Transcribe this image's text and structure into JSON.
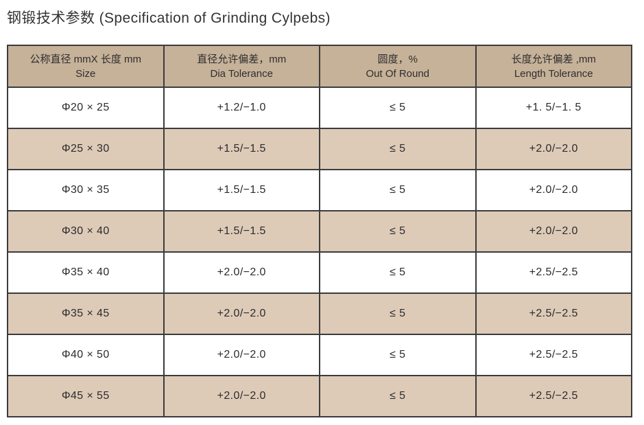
{
  "page": {
    "title": "钢锻技术参数 (Specification of Grinding Cylpebs)"
  },
  "table": {
    "columns": [
      {
        "zh": "公称直径 mmX 长度 mm",
        "en": "Size"
      },
      {
        "zh": "直径允许偏差，mm",
        "en": "Dia Tolerance"
      },
      {
        "zh": "圆度，%",
        "en": "Out Of Round"
      },
      {
        "zh": "长度允许偏差 ,mm",
        "en": "Length Tolerance"
      }
    ],
    "rows": [
      [
        "Φ20 × 25",
        "+1.2/−1.0",
        "≤ 5",
        "+1. 5/−1. 5"
      ],
      [
        "Φ25 × 30",
        "+1.5/−1.5",
        "≤ 5",
        "+2.0/−2.0"
      ],
      [
        "Φ30 × 35",
        "+1.5/−1.5",
        "≤ 5",
        "+2.0/−2.0"
      ],
      [
        "Φ30 × 40",
        "+1.5/−1.5",
        "≤ 5",
        "+2.0/−2.0"
      ],
      [
        "Φ35 × 40",
        "+2.0/−2.0",
        "≤ 5",
        "+2.5/−2.5"
      ],
      [
        "Φ35 × 45",
        "+2.0/−2.0",
        "≤ 5",
        "+2.5/−2.5"
      ],
      [
        "Φ40 × 50",
        "+2.0/−2.0",
        "≤ 5",
        "+2.5/−2.5"
      ],
      [
        "Φ45 × 55",
        "+2.0/−2.0",
        "≤ 5",
        "+2.5/−2.5"
      ]
    ],
    "colors": {
      "header_bg": "#c6b199",
      "alt_row_bg": "#ddcbb8",
      "row_bg": "#ffffff",
      "border": "#3b3b3b",
      "text": "#2b2b2b"
    }
  }
}
